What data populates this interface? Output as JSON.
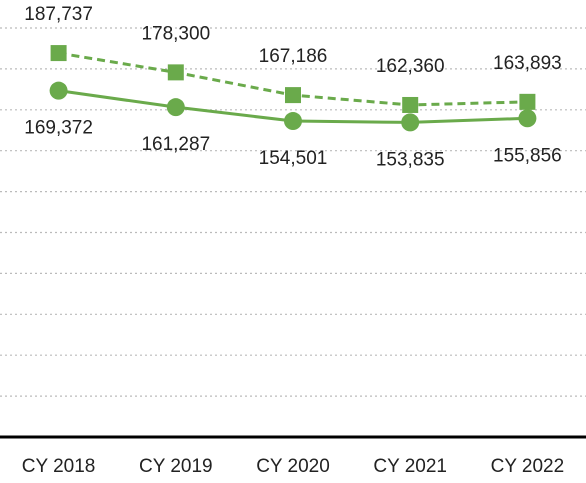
{
  "chart_data": {
    "type": "line",
    "categories": [
      "CY 2018",
      "CY 2019",
      "CY 2020",
      "CY 2021",
      "CY 2022"
    ],
    "series": [
      {
        "color": "#6aaa4b",
        "dashed": true,
        "marker": "square",
        "values": [
          187737,
          178300,
          167186,
          162360,
          163893
        ],
        "value_labels": [
          "187,737",
          "178,300",
          "167,186",
          "162,360",
          "163,893"
        ]
      },
      {
        "color": "#6aaa4b",
        "dashed": false,
        "marker": "circle",
        "values": [
          169372,
          161287,
          154501,
          153835,
          155856
        ],
        "value_labels": [
          "169,372",
          "161,287",
          "154,501",
          "153,835",
          "155,856"
        ]
      }
    ],
    "ylim": [
      0,
      200000
    ],
    "yticks": [
      0,
      20000,
      40000,
      60000,
      80000,
      100000,
      120000,
      140000,
      160000,
      180000,
      200000
    ],
    "grid": true
  }
}
